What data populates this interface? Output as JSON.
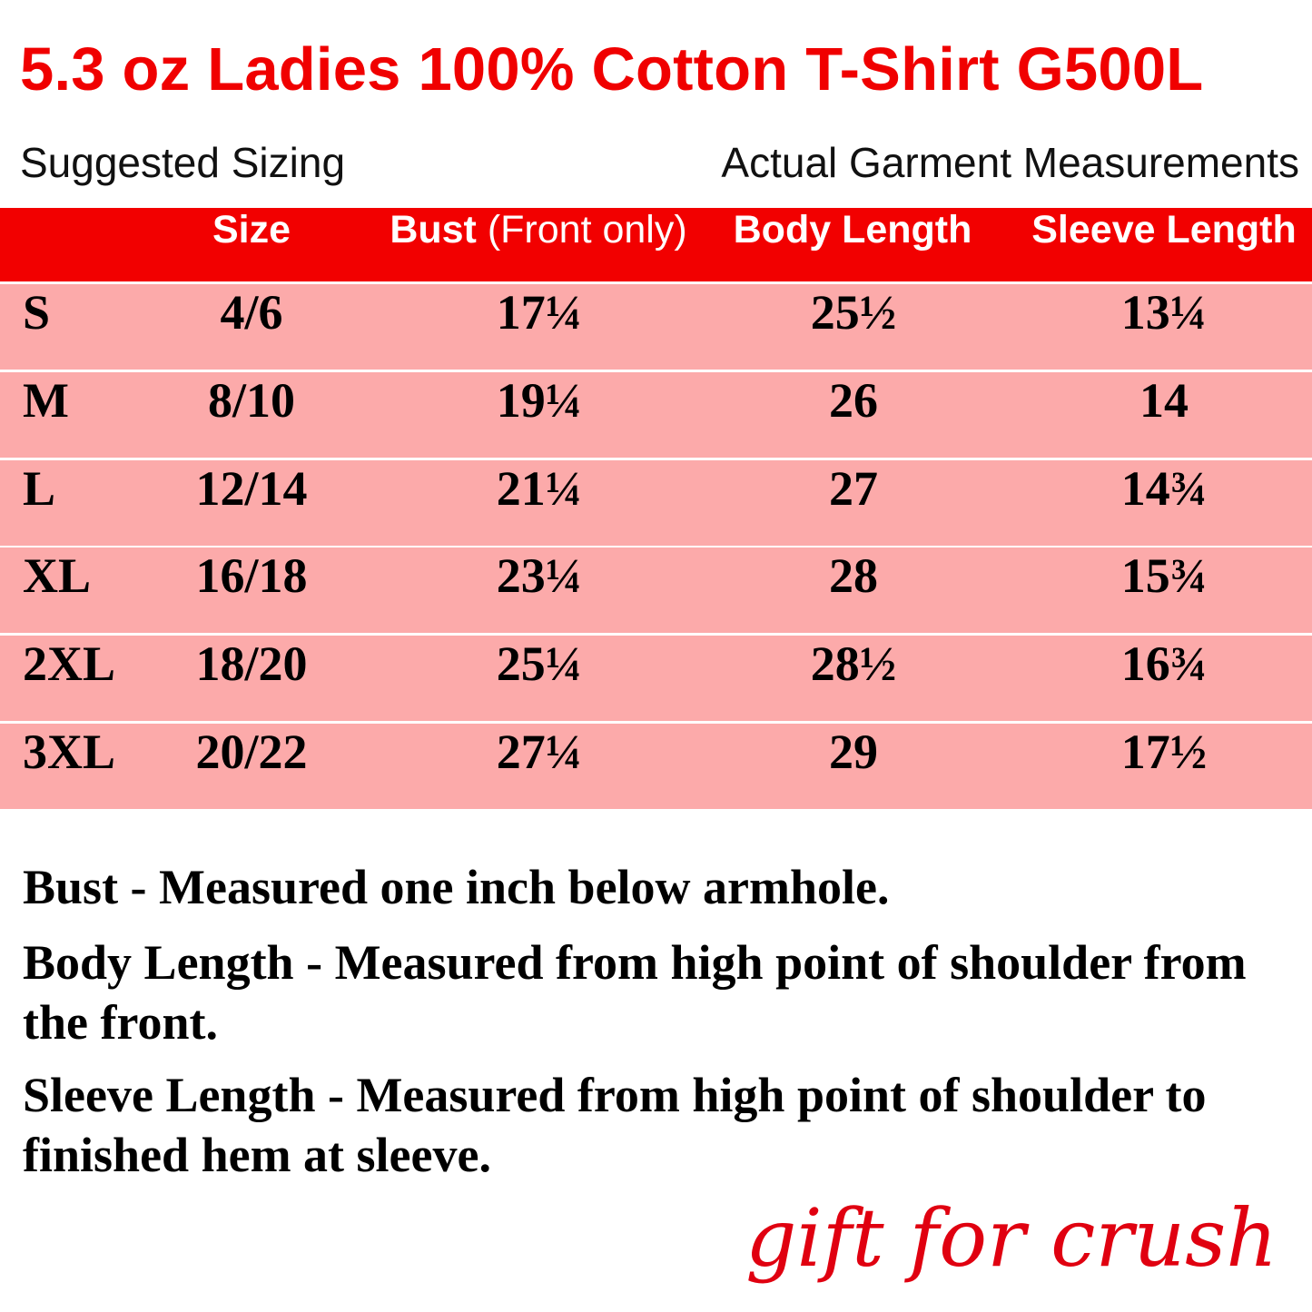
{
  "title": "5.3 oz Ladies 100% Cotton T-Shirt G500L",
  "subtitle_left": "Suggested Sizing",
  "subtitle_right": "Actual Garment Measurements",
  "colors": {
    "header_bg": "#f20000",
    "row_bg": "#fcaaaa",
    "title": "#f00000"
  },
  "table": {
    "headers": {
      "size": "Size",
      "bust": "Bust",
      "bust_note": "(Front only)",
      "body_length": "Body Length",
      "sleeve_length": "Sleeve Length"
    },
    "rows": [
      {
        "label": "S",
        "size": "4/6",
        "bust": "17¼",
        "body": "25½",
        "sleeve": "13¼"
      },
      {
        "label": "M",
        "size": "8/10",
        "bust": "19¼",
        "body": "26",
        "sleeve": "14"
      },
      {
        "label": "L",
        "size": "12/14",
        "bust": "21¼",
        "body": "27",
        "sleeve": "14¾"
      },
      {
        "label": "XL",
        "size": "16/18",
        "bust": "23¼",
        "body": "28",
        "sleeve": "15¾"
      },
      {
        "label": "2XL",
        "size": "18/20",
        "bust": "25¼",
        "body": "28½",
        "sleeve": "16¾"
      },
      {
        "label": "3XL",
        "size": "20/22",
        "bust": "27¼",
        "body": "29",
        "sleeve": "17½"
      }
    ]
  },
  "notes": [
    "Bust - Measured one inch below armhole.",
    "Body Length - Measured from high point of shoulder from the front.",
    "Sleeve Length - Measured from high point of shoulder to finished hem at sleeve."
  ],
  "signature": "gift for crush"
}
